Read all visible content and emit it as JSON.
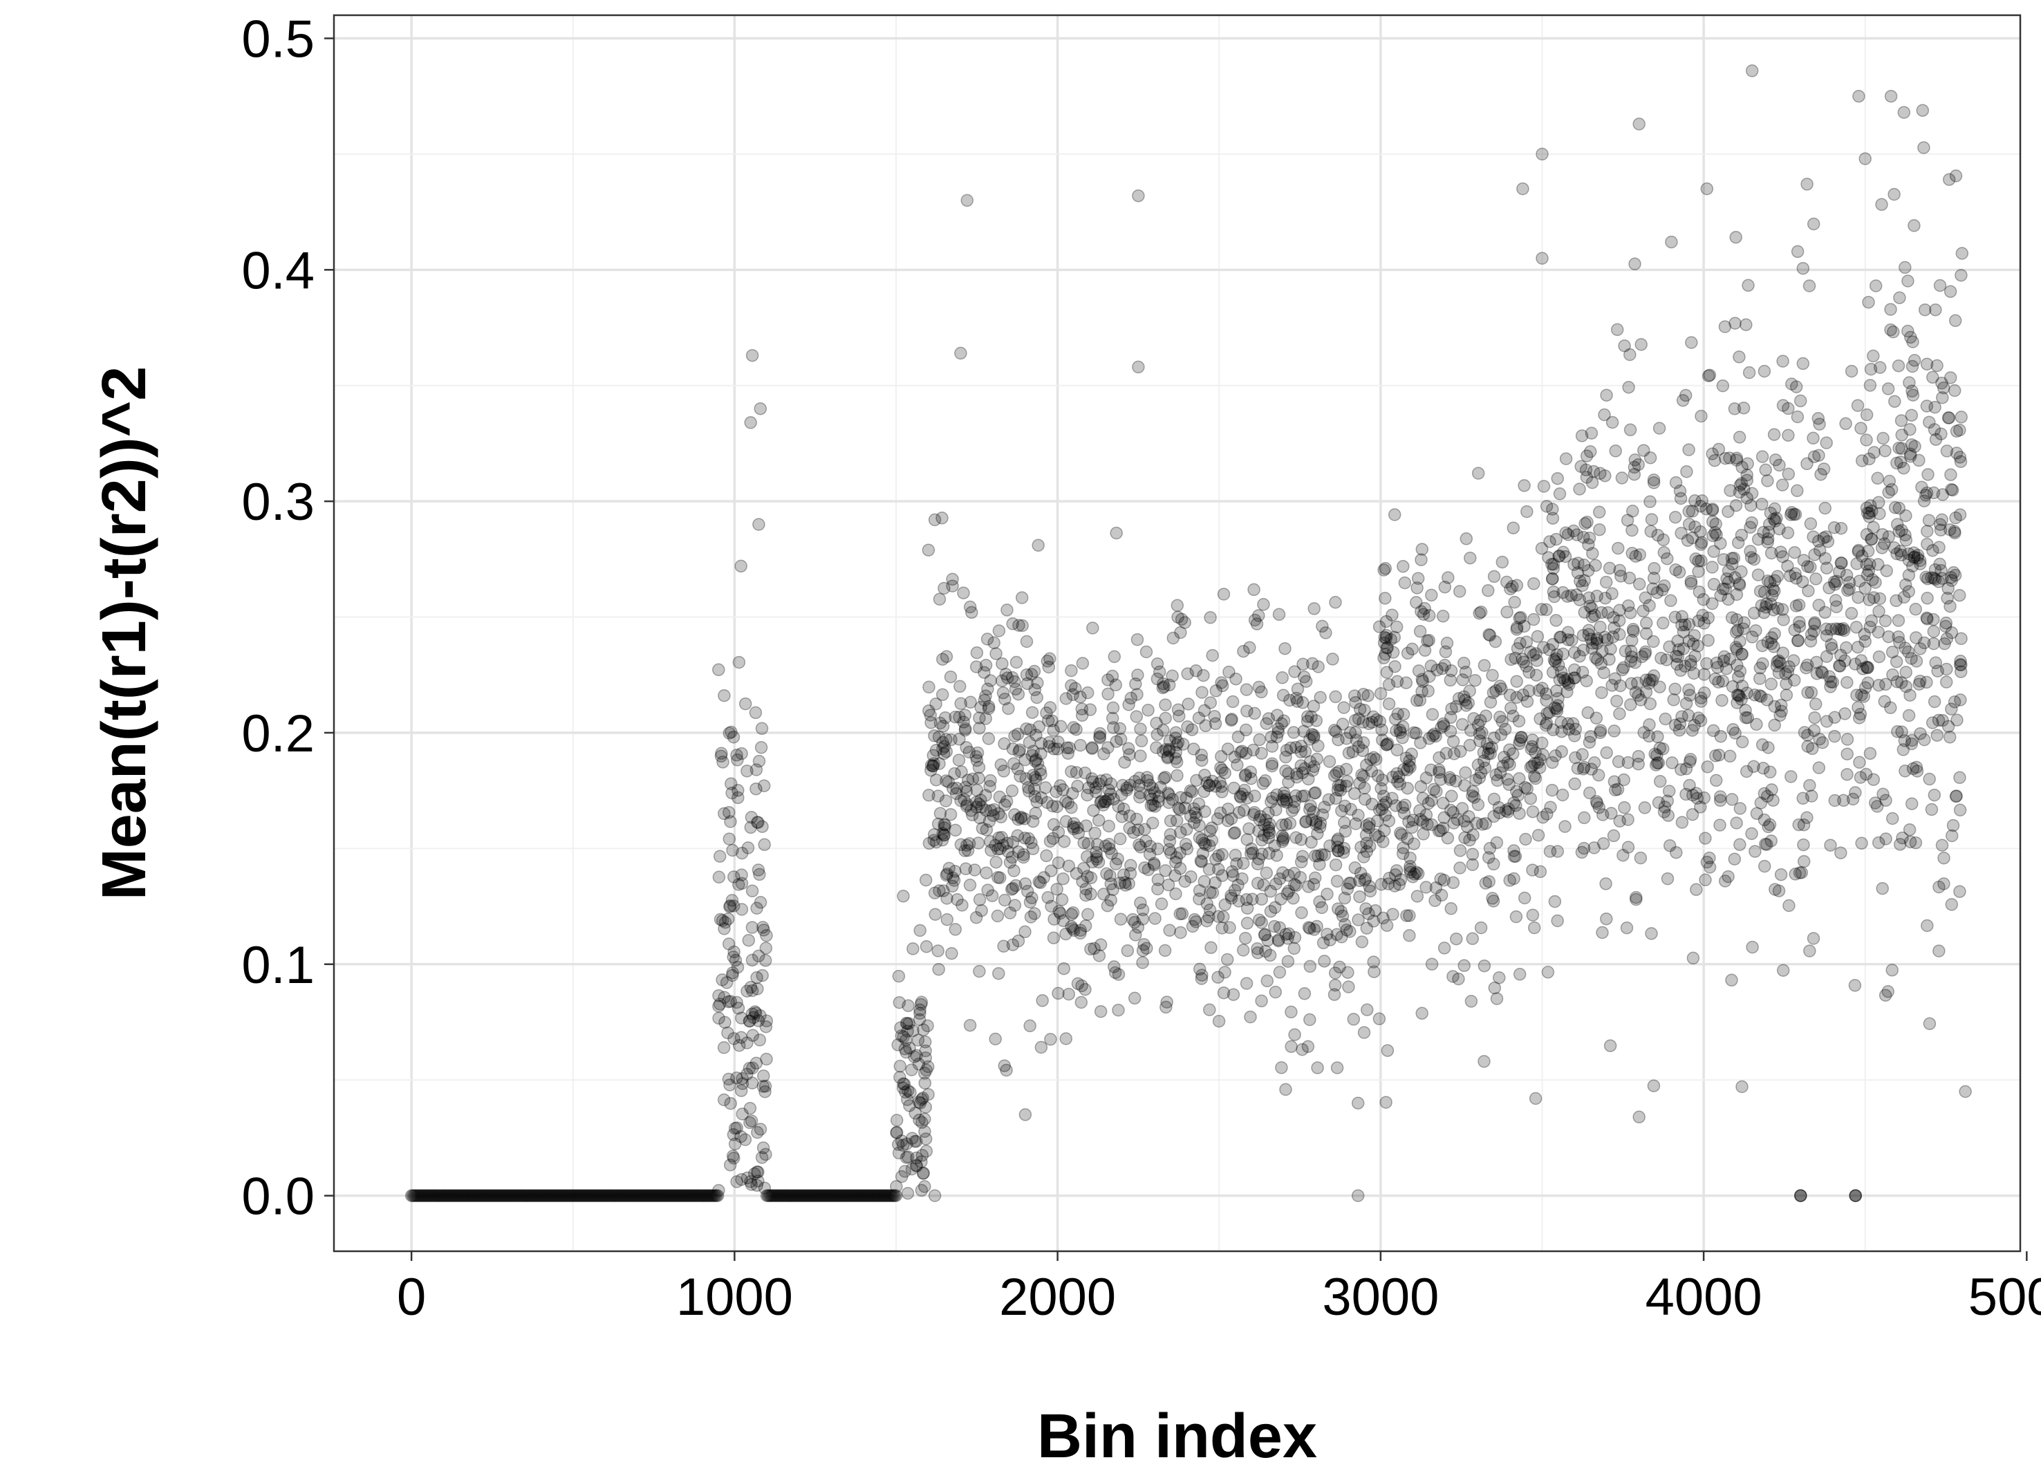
{
  "chart_data": {
    "type": "scatter",
    "title": "",
    "xlabel": "Bin index",
    "ylabel": "Mean(t(r1)-t(r2))^2",
    "xlim": [
      -240,
      4980
    ],
    "ylim": [
      -0.024,
      0.51
    ],
    "x_ticks": [
      0,
      1000,
      2000,
      3000,
      4000,
      5000
    ],
    "x_tick_labels": [
      "0",
      "1000",
      "2000",
      "3000",
      "4000",
      "5000"
    ],
    "y_ticks": [
      0.0,
      0.1,
      0.2,
      0.3,
      0.4,
      0.5
    ],
    "y_tick_labels": [
      "0.0",
      "0.1",
      "0.2",
      "0.3",
      "0.4",
      "0.5"
    ],
    "grid": true,
    "legend": "none",
    "point_color": "#000000",
    "point_opacity": 0.22,
    "zero_runs": [
      [
        0,
        950
      ],
      [
        1100,
        1500
      ]
    ],
    "zero_points": [
      4300,
      4470
    ],
    "segments": [
      {
        "x_range": [
          950,
          1100
        ],
        "y_center": 0.1,
        "y_spread": 0.06,
        "n": 160
      },
      {
        "x_range": [
          1500,
          1600
        ],
        "y_center": 0.05,
        "y_spread": 0.03,
        "n": 90
      },
      {
        "x_range": [
          1600,
          2000
        ],
        "y_center": 0.17,
        "y_spread": 0.04,
        "n": 320
      },
      {
        "x_range": [
          2000,
          3000
        ],
        "y_center": 0.16,
        "y_spread": 0.04,
        "n": 800
      },
      {
        "x_range": [
          3000,
          3500
        ],
        "y_center": 0.19,
        "y_spread": 0.045,
        "n": 400
      },
      {
        "x_range": [
          3500,
          4000
        ],
        "y_center": 0.23,
        "y_spread": 0.055,
        "n": 420
      },
      {
        "x_range": [
          4000,
          4500
        ],
        "y_center": 0.25,
        "y_spread": 0.06,
        "n": 420
      },
      {
        "x_range": [
          4500,
          4800
        ],
        "y_center": 0.27,
        "y_spread": 0.065,
        "n": 300
      }
    ],
    "notable_points": [
      [
        1020,
        0.272
      ],
      [
        1055,
        0.363
      ],
      [
        1080,
        0.34
      ],
      [
        1050,
        0.334
      ],
      [
        1075,
        0.29
      ],
      [
        1620,
        0.292
      ],
      [
        1720,
        0.43
      ],
      [
        1700,
        0.364
      ],
      [
        2250,
        0.432
      ],
      [
        2250,
        0.358
      ],
      [
        3500,
        0.45
      ],
      [
        3500,
        0.405
      ],
      [
        3440,
        0.435
      ],
      [
        3800,
        0.463
      ],
      [
        3900,
        0.412
      ],
      [
        4150,
        0.486
      ],
      [
        4010,
        0.435
      ],
      [
        4480,
        0.475
      ],
      [
        4580,
        0.475
      ],
      [
        4620,
        0.468
      ],
      [
        4760,
        0.439
      ],
      [
        4500,
        0.448
      ],
      [
        4320,
        0.437
      ],
      [
        1900,
        0.035
      ],
      [
        3480,
        0.042
      ],
      [
        3800,
        0.034
      ],
      [
        4810,
        0.045
      ],
      [
        2930,
        0.0
      ],
      [
        2930,
        0.04
      ],
      [
        1620,
        0.0
      ]
    ]
  }
}
